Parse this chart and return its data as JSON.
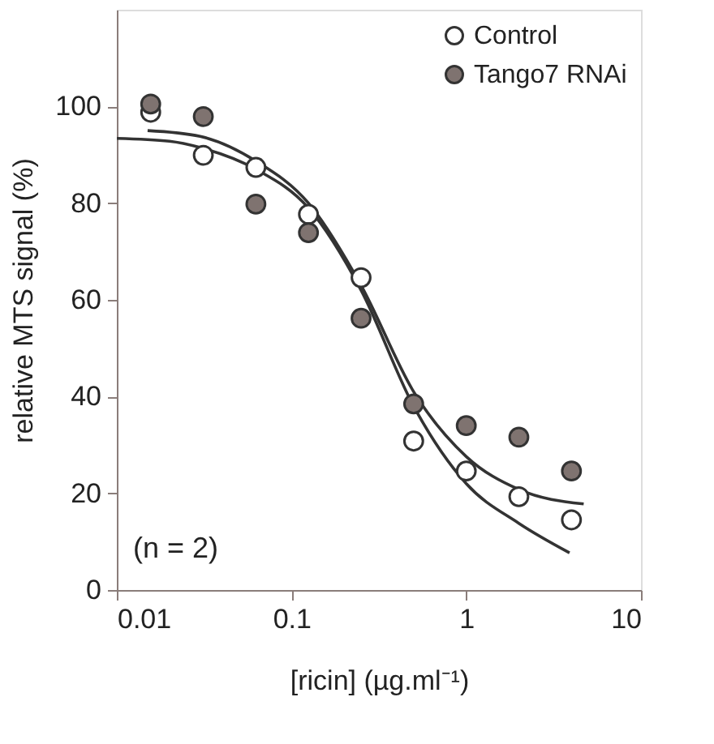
{
  "chart_data": {
    "type": "scatter",
    "xlabel": "[ricin] (µg.ml⁻¹)",
    "ylabel": "relative MTS signal (%)",
    "log": "x",
    "x": [
      0.015625,
      0.03125,
      0.0625,
      0.125,
      0.25,
      0.5,
      1,
      2,
      4
    ],
    "series": [
      {
        "name": "Control",
        "color": "#ffffff",
        "marker": "circle",
        "values": [
          98.8,
          89.9,
          87.4,
          77.7,
          64.6,
          30.8,
          24.6,
          19.3,
          14.5
        ]
      },
      {
        "name": "Tango7 RNAi",
        "color": "#7f7370",
        "marker": "circle",
        "values": [
          100.5,
          97.9,
          79.8,
          73.9,
          56.2,
          38.5,
          34.0,
          31.6,
          24.6
        ]
      },
      {
        "type": "line",
        "color": "#333333",
        "marker": "none",
        "x": [
          0.01,
          0.02,
          0.03,
          0.0625,
          0.125,
          0.25,
          0.5,
          1,
          2,
          3.9
        ],
        "values": [
          93.4,
          92.8,
          91.5,
          87,
          79,
          62,
          38,
          22,
          13.8,
          7.7
        ]
      },
      {
        "type": "line",
        "color": "#333333",
        "marker": "none",
        "x": [
          0.015,
          0.03,
          0.0625,
          0.125,
          0.25,
          0.5,
          1,
          2,
          4.7
        ],
        "values": [
          95,
          93.8,
          88.7,
          80,
          63,
          41,
          27.6,
          20.8,
          17.8
        ]
      }
    ],
    "xlim": [
      0.01,
      10
    ],
    "xticks": [
      0.01,
      0.1,
      1,
      10
    ],
    "ylim": [
      0,
      120
    ],
    "yticks": [
      0,
      20,
      40,
      60,
      80,
      100
    ],
    "grid": false,
    "legend": "top right",
    "line_style": "solid",
    "annotations": [
      "(n = 2)"
    ]
  }
}
